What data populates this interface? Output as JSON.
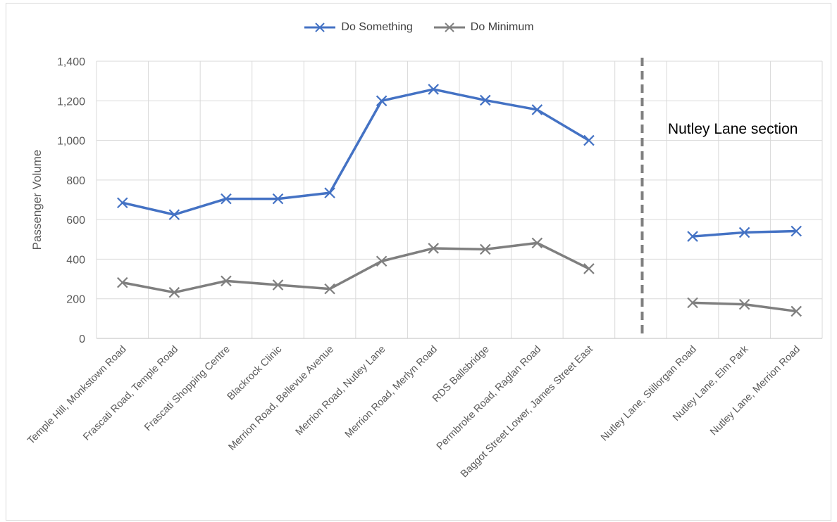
{
  "chart_data": {
    "type": "line",
    "ylabel": "Passenger Volume",
    "xlabel": "",
    "ylim": [
      0,
      1400
    ],
    "yticks": [
      "0",
      "200",
      "400",
      "600",
      "800",
      "1,000",
      "1,200",
      "1,400"
    ],
    "grid": true,
    "legend_position": "top",
    "categories": [
      "Temple Hill, Monkstown Road",
      "Frascati Road, Temple Road",
      "Frascati Shopping Centre",
      "Blackrock Clinic",
      "Merrion Road, Bellevue Avenue",
      "Merrion Road, Nutley Lane",
      "Merrion Road, Merlyn Road",
      "RDS Ballsbridge",
      "Permbroke Road, Raglan Road",
      "Baggot Street Lower, James Street East",
      "",
      "Nutley Lane, Stillorgan Road",
      "Nutley Lane, Elm Park",
      "Nutley Lane, Merrion Road"
    ],
    "series": [
      {
        "name": "Do Something",
        "color": "#4472c4",
        "values": [
          685,
          625,
          705,
          705,
          735,
          1200,
          1258,
          1203,
          1155,
          1000,
          null,
          515,
          535,
          542
        ]
      },
      {
        "name": "Do Minimum",
        "color": "#7f7f7f",
        "values": [
          282,
          232,
          290,
          270,
          250,
          390,
          455,
          450,
          482,
          352,
          null,
          180,
          172,
          137
        ]
      }
    ],
    "annotation": "Nutley Lane section"
  }
}
